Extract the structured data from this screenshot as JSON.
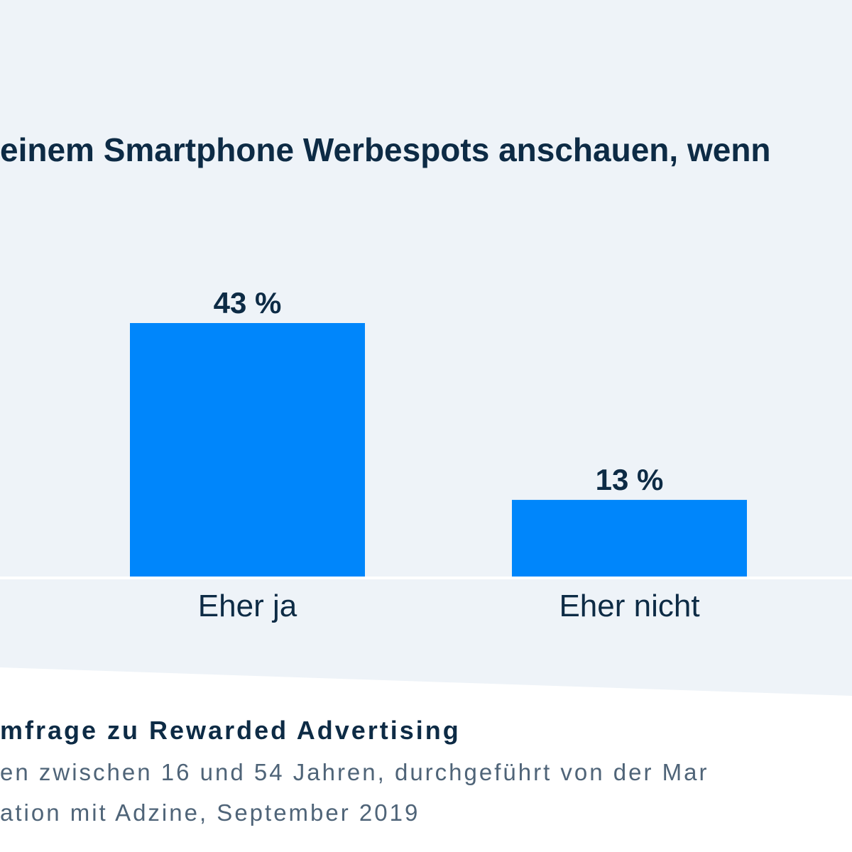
{
  "colors": {
    "bar": "#0086fb",
    "text": "#0d2b45",
    "muted_text": "#4f6478",
    "background_panel": "#eef3f8",
    "background_page": "#ffffff",
    "baseline": "#ffffff"
  },
  "chart_data": {
    "type": "bar",
    "title": "einem Smartphone Werbespots anschauen, wenn",
    "xlabel": "",
    "ylabel": "",
    "categories": [
      "Eher ja",
      "Eher nicht"
    ],
    "values": [
      43,
      13
    ],
    "value_labels": [
      "43 %",
      "13 %"
    ],
    "ylim": [
      0,
      50
    ],
    "grid": false,
    "legend": "none"
  },
  "footer": {
    "title": "mfrage zu Rewarded Advertising",
    "line1": "en zwischen 16 und 54 Jahren, durchgeführt von der Mar",
    "line2": "ation mit Adzine, September 2019"
  }
}
